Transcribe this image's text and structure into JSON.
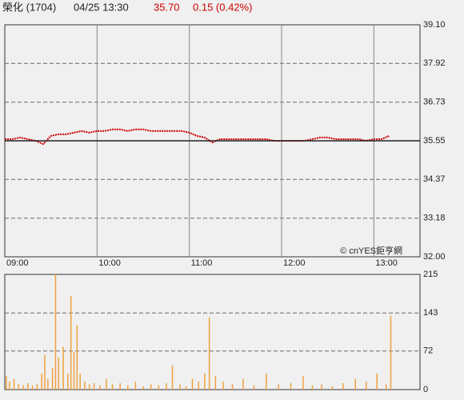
{
  "header": {
    "name": "榮化 (1704)",
    "time": "04/25 13:30",
    "price": "35.70",
    "change": "0.15 (0.42%)"
  },
  "chart_data": [
    {
      "type": "line",
      "annotation": "© cnYES鉅亨網",
      "x": [
        0,
        5,
        10,
        15,
        20,
        25,
        30,
        35,
        40,
        45,
        50,
        55,
        60,
        65,
        70,
        75,
        80,
        85,
        90,
        95,
        100,
        105,
        110,
        115,
        120,
        125,
        130,
        135,
        140,
        145,
        150,
        155,
        160,
        165,
        170,
        175,
        180,
        185,
        190,
        195,
        200,
        205,
        210,
        215,
        220,
        225,
        230,
        235,
        240,
        245,
        250
      ],
      "series": [
        {
          "color": "#cc0000",
          "values": [
            35.6,
            35.6,
            35.65,
            35.6,
            35.55,
            35.45,
            35.7,
            35.75,
            35.75,
            35.8,
            35.85,
            35.8,
            35.85,
            35.85,
            35.9,
            35.9,
            35.85,
            35.9,
            35.9,
            35.85,
            35.85,
            35.85,
            35.85,
            35.85,
            35.8,
            35.7,
            35.65,
            35.5,
            35.6,
            35.6,
            35.6,
            35.6,
            35.6,
            35.6,
            35.6,
            35.55,
            35.55,
            35.55,
            35.55,
            35.55,
            35.6,
            35.65,
            35.65,
            35.6,
            35.6,
            35.6,
            35.6,
            35.55,
            35.6,
            35.6,
            35.7
          ]
        }
      ],
      "reference_line": 35.55,
      "xlim": [
        0,
        270
      ],
      "xticks": [
        {
          "value": 0,
          "label": "09:00"
        },
        {
          "value": 60,
          "label": "10:00"
        },
        {
          "value": 120,
          "label": "11:00"
        },
        {
          "value": 180,
          "label": "12:00"
        },
        {
          "value": 240,
          "label": "13:00"
        }
      ],
      "ylim": [
        32.0,
        39.1
      ],
      "yticks": [
        {
          "value": 39.1,
          "label": "39.10"
        },
        37.92,
        36.73,
        35.55,
        34.37,
        33.18,
        {
          "value": 32.0,
          "label": "32.00"
        }
      ],
      "grid": true
    },
    {
      "type": "bar",
      "x": [
        1,
        3,
        6,
        9,
        12,
        15,
        18,
        21,
        24,
        26,
        28,
        31,
        33,
        35,
        38,
        41,
        43,
        45,
        47,
        49,
        52,
        55,
        58,
        62,
        66,
        70,
        75,
        80,
        85,
        90,
        95,
        100,
        105,
        109,
        114,
        118,
        122,
        126,
        130,
        133,
        137,
        142,
        148,
        155,
        162,
        170,
        178,
        186,
        194,
        200,
        206,
        213,
        220,
        228,
        235,
        242,
        248,
        251
      ],
      "values": [
        25,
        15,
        20,
        10,
        8,
        12,
        8,
        10,
        30,
        65,
        20,
        40,
        215,
        60,
        80,
        30,
        175,
        70,
        120,
        30,
        15,
        10,
        12,
        8,
        20,
        10,
        12,
        8,
        15,
        6,
        10,
        8,
        12,
        45,
        10,
        6,
        20,
        15,
        30,
        135,
        25,
        15,
        10,
        20,
        8,
        30,
        10,
        12,
        25,
        8,
        10,
        6,
        12,
        20,
        15,
        30,
        10,
        138
      ],
      "color": "#f0a040",
      "xlim": [
        0,
        270
      ],
      "ylim": [
        0,
        215
      ],
      "yticks": [
        0,
        72,
        143,
        215
      ],
      "grid": true
    }
  ]
}
